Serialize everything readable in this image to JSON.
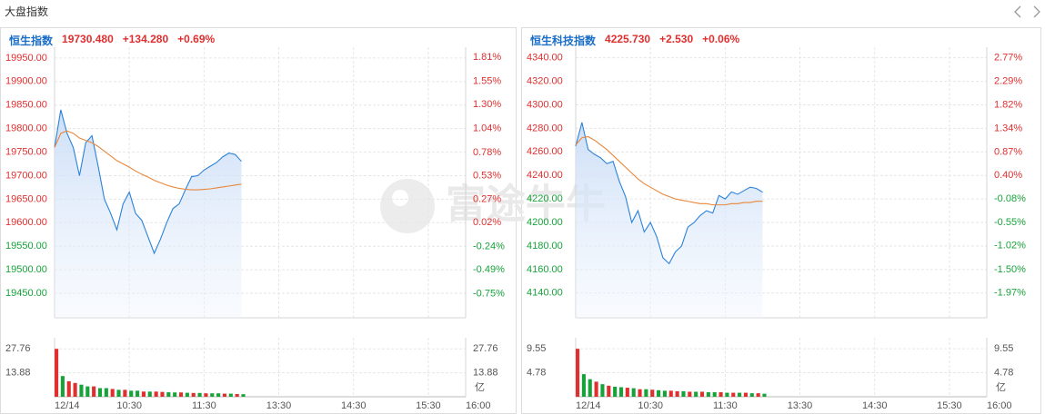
{
  "header": {
    "title": "大盘指数"
  },
  "watermark": "富途牛牛",
  "chart_data": [
    {
      "type": "line",
      "title": "恒生指数",
      "title_color": "#1a6ec7",
      "quote": [
        "19730.480",
        "+134.280",
        "+0.69%"
      ],
      "quote_color": "#e02f2f",
      "up_color": "#e02f2f",
      "down_color": "#17a33a",
      "grid": true,
      "area": true,
      "x": [
        "09:30",
        "09:35",
        "09:40",
        "09:45",
        "09:50",
        "09:55",
        "10:00",
        "10:05",
        "10:10",
        "10:15",
        "10:20",
        "10:25",
        "10:30",
        "10:35",
        "10:40",
        "10:45",
        "10:50",
        "10:55",
        "11:00",
        "11:05",
        "11:10",
        "11:15",
        "11:20",
        "11:25",
        "11:30",
        "11:35",
        "11:40",
        "11:45",
        "11:50",
        "11:55",
        "12:00"
      ],
      "xlim": [
        "09:30",
        "16:00"
      ],
      "xticks": [
        {
          "value": "09:30",
          "label": "12/14"
        },
        "10:30",
        "11:30",
        "13:30",
        "14:30",
        "15:30",
        "16:00"
      ],
      "series": [
        {
          "color": "#2b82d9",
          "values": [
            19760,
            19840,
            19790,
            19760,
            19700,
            19770,
            19785,
            19720,
            19650,
            19620,
            19585,
            19640,
            19665,
            19620,
            19605,
            19570,
            19535,
            19565,
            19600,
            19630,
            19640,
            19670,
            19698,
            19700,
            19712,
            19720,
            19728,
            19740,
            19748,
            19745,
            19730.48
          ]
        },
        {
          "color": "#e8863a",
          "values": [
            19760,
            19790,
            19795,
            19790,
            19780,
            19775,
            19770,
            19762,
            19752,
            19742,
            19732,
            19725,
            19718,
            19710,
            19703,
            19697,
            19690,
            19685,
            19680,
            19676,
            19673,
            19671,
            19670,
            19670,
            19671,
            19672,
            19674,
            19676,
            19678,
            19680,
            19682
          ]
        }
      ],
      "ylim": [
        19398,
        19973
      ],
      "yticks": [
        {
          "value": 19950,
          "label": "19950.00"
        },
        {
          "value": 19900,
          "label": "19900.00"
        },
        {
          "value": 19850,
          "label": "19850.00"
        },
        {
          "value": 19800,
          "label": "19800.00"
        },
        {
          "value": 19750,
          "label": "19750.00"
        },
        {
          "value": 19700,
          "label": "19700.00"
        },
        {
          "value": 19650,
          "label": "19650.00"
        },
        {
          "value": 19600,
          "label": "19600.00"
        },
        {
          "value": 19550,
          "label": "19550.00"
        },
        {
          "value": 19500,
          "label": "19500.00"
        },
        {
          "value": 19450,
          "label": "19450.00"
        }
      ],
      "y2lim": [
        -1.01,
        1.92
      ],
      "y2ticks": [
        {
          "value": 1.81,
          "label": "1.81%"
        },
        {
          "value": 1.55,
          "label": "1.55%"
        },
        {
          "value": 1.3,
          "label": "1.30%"
        },
        {
          "value": 1.04,
          "label": "1.04%"
        },
        {
          "value": 0.78,
          "label": "0.78%"
        },
        {
          "value": 0.53,
          "label": "0.53%"
        },
        {
          "value": 0.27,
          "label": "0.27%"
        },
        {
          "value": 0.02,
          "label": "0.02%"
        },
        {
          "value": -0.24,
          "label": "-0.24%"
        },
        {
          "value": -0.49,
          "label": "-0.49%"
        },
        {
          "value": -0.75,
          "label": "-0.75%"
        }
      ],
      "volume": {
        "values": [
          27.76,
          12,
          9,
          8,
          7,
          6,
          6,
          5,
          5,
          4.5,
          4,
          4,
          3.5,
          3.5,
          3,
          3,
          3,
          2.8,
          2.6,
          2.5,
          2.5,
          2.3,
          2.2,
          2.2,
          2,
          2,
          2,
          1.8,
          1.8,
          1.6,
          1.5
        ],
        "colors": [
          "#e02f2f",
          "#17a33a",
          "#e02f2f",
          "#e02f2f",
          "#17a33a",
          "#17a33a",
          "#e02f2f",
          "#17a33a",
          "#17a33a",
          "#e02f2f",
          "#17a33a",
          "#e02f2f",
          "#17a33a",
          "#17a33a",
          "#e02f2f",
          "#17a33a",
          "#e02f2f",
          "#e02f2f",
          "#17a33a",
          "#17a33a",
          "#e02f2f",
          "#17a33a",
          "#e02f2f",
          "#17a33a",
          "#e02f2f",
          "#17a33a",
          "#17a33a",
          "#e02f2f",
          "#17a33a",
          "#e02f2f",
          "#17a33a"
        ],
        "ylim": [
          0,
          34.2
        ],
        "yticks": [
          27.76,
          13.88
        ],
        "unit": "亿"
      }
    },
    {
      "type": "line",
      "title": "恒生科技指数",
      "title_color": "#1a6ec7",
      "quote": [
        "4225.730",
        "+2.530",
        "+0.06%"
      ],
      "quote_color": "#e02f2f",
      "up_color": "#e02f2f",
      "down_color": "#17a33a",
      "grid": true,
      "area": true,
      "x": [
        "09:30",
        "09:35",
        "09:40",
        "09:45",
        "09:50",
        "09:55",
        "10:00",
        "10:05",
        "10:10",
        "10:15",
        "10:20",
        "10:25",
        "10:30",
        "10:35",
        "10:40",
        "10:45",
        "10:50",
        "10:55",
        "11:00",
        "11:05",
        "11:10",
        "11:15",
        "11:20",
        "11:25",
        "11:30",
        "11:35",
        "11:40",
        "11:45",
        "11:50",
        "11:55",
        "12:00"
      ],
      "xlim": [
        "09:30",
        "16:00"
      ],
      "xticks": [
        {
          "value": "09:30",
          "label": "12/14"
        },
        "10:30",
        "11:30",
        "13:30",
        "14:30",
        "15:30",
        "16:00"
      ],
      "series": [
        {
          "color": "#2b82d9",
          "values": [
            4265,
            4285,
            4262,
            4258,
            4255,
            4250,
            4252,
            4235,
            4222,
            4200,
            4210,
            4192,
            4200,
            4188,
            4170,
            4165,
            4175,
            4180,
            4196,
            4200,
            4206,
            4210,
            4208,
            4223,
            4220,
            4226,
            4224,
            4227,
            4230,
            4229,
            4225.73
          ]
        },
        {
          "color": "#e8863a",
          "values": [
            4266,
            4272,
            4273,
            4270,
            4266,
            4262,
            4257,
            4252,
            4247,
            4242,
            4237,
            4233,
            4230,
            4227,
            4224,
            4222,
            4220,
            4219,
            4218,
            4217,
            4216,
            4216,
            4215,
            4215,
            4215,
            4216,
            4216,
            4217,
            4217,
            4218,
            4218
          ]
        }
      ],
      "ylim": [
        4119,
        4349
      ],
      "yticks": [
        {
          "value": 4340,
          "label": "4340.00"
        },
        {
          "value": 4320,
          "label": "4320.00"
        },
        {
          "value": 4300,
          "label": "4300.00"
        },
        {
          "value": 4280,
          "label": "4280.00"
        },
        {
          "value": 4260,
          "label": "4260.00"
        },
        {
          "value": 4240,
          "label": "4240.00"
        },
        {
          "value": 4220,
          "label": "4220.00"
        },
        {
          "value": 4200,
          "label": "4200.00"
        },
        {
          "value": 4180,
          "label": "4180.00"
        },
        {
          "value": 4160,
          "label": "4160.00"
        },
        {
          "value": 4140,
          "label": "4140.00"
        }
      ],
      "y2lim": [
        -2.47,
        2.98
      ],
      "y2ticks": [
        {
          "value": 2.77,
          "label": "2.77%"
        },
        {
          "value": 2.29,
          "label": "2.29%"
        },
        {
          "value": 1.82,
          "label": "1.82%"
        },
        {
          "value": 1.34,
          "label": "1.34%"
        },
        {
          "value": 0.87,
          "label": "0.87%"
        },
        {
          "value": 0.4,
          "label": "0.40%"
        },
        {
          "value": -0.08,
          "label": "-0.08%"
        },
        {
          "value": -0.55,
          "label": "-0.55%"
        },
        {
          "value": -1.02,
          "label": "-1.02%"
        },
        {
          "value": -1.5,
          "label": "-1.50%"
        },
        {
          "value": -1.97,
          "label": "-1.97%"
        }
      ],
      "volume": {
        "values": [
          9.55,
          4.5,
          3.5,
          3,
          2.5,
          2.2,
          2,
          1.9,
          1.8,
          1.7,
          1.5,
          1.5,
          1.4,
          1.3,
          1.2,
          1.2,
          1.1,
          1.1,
          1,
          1,
          1,
          0.9,
          0.9,
          0.9,
          0.8,
          0.8,
          0.8,
          0.8,
          0.7,
          0.7,
          0.6
        ],
        "colors": [
          "#e02f2f",
          "#17a33a",
          "#17a33a",
          "#e02f2f",
          "#17a33a",
          "#e02f2f",
          "#17a33a",
          "#17a33a",
          "#e02f2f",
          "#17a33a",
          "#e02f2f",
          "#17a33a",
          "#e02f2f",
          "#17a33a",
          "#17a33a",
          "#e02f2f",
          "#e02f2f",
          "#17a33a",
          "#e02f2f",
          "#17a33a",
          "#e02f2f",
          "#17a33a",
          "#17a33a",
          "#e02f2f",
          "#17a33a",
          "#e02f2f",
          "#17a33a",
          "#e02f2f",
          "#17a33a",
          "#e02f2f",
          "#17a33a"
        ],
        "ylim": [
          0,
          11.75
        ],
        "yticks": [
          9.55,
          4.78
        ],
        "unit": "亿"
      }
    }
  ]
}
